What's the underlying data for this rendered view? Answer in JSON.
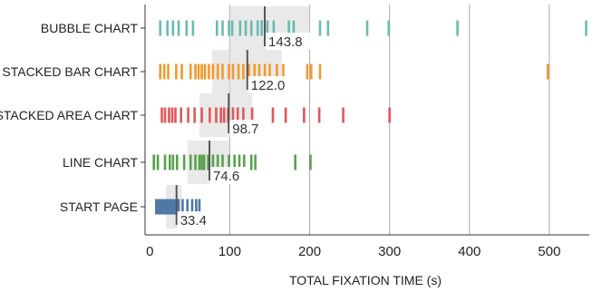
{
  "chart_data": {
    "type": "strip",
    "xlabel": "TOTAL FIXATION TIME (s)",
    "xlim": [
      -6,
      550
    ],
    "x_ticks": [
      0,
      100,
      200,
      300,
      400,
      500
    ],
    "x_tick_labels": [
      "0",
      "100",
      "200",
      "300",
      "400",
      "500"
    ],
    "grid": "vertical",
    "rows": [
      {
        "category": "BUBBLE CHART",
        "color": "#6bbab2",
        "mean": 143.8,
        "mean_label": "143.8",
        "ci": [
          100,
          200
        ],
        "values": [
          13,
          22,
          29,
          36,
          46,
          54,
          84,
          91,
          99,
          103,
          113,
          120,
          127,
          135,
          140,
          147,
          155,
          174,
          180,
          213,
          223,
          272,
          299,
          385,
          546
        ]
      },
      {
        "category": "STACKED BAR CHART",
        "color": "#f29a2e",
        "mean": 122.0,
        "mean_label": "122.0",
        "ci": [
          78,
          165
        ],
        "values": [
          13,
          18,
          23,
          33,
          40,
          51,
          57,
          61,
          65,
          69,
          74,
          79,
          85,
          91,
          99,
          104,
          111,
          117,
          124,
          131,
          137,
          144,
          150,
          159,
          167,
          197,
          202,
          213,
          498
        ]
      },
      {
        "category": "STACKED AREA CHART",
        "color": "#e15759",
        "mean": 98.7,
        "mean_label": "98.7",
        "ci": [
          62,
          128
        ],
        "values": [
          15,
          19,
          24,
          28,
          32,
          39,
          48,
          56,
          65,
          75,
          83,
          89,
          93,
          98,
          104,
          110,
          117,
          128,
          154,
          170,
          193,
          212,
          242,
          300
        ]
      },
      {
        "category": "LINE CHART",
        "color": "#59a14f",
        "mean": 74.6,
        "mean_label": "74.6",
        "ci": [
          47,
          100
        ],
        "values": [
          5,
          10,
          19,
          25,
          29,
          34,
          43,
          51,
          57,
          62,
          65,
          68,
          73,
          79,
          85,
          91,
          99,
          106,
          112,
          118,
          127,
          132,
          182,
          201
        ]
      },
      {
        "category": "START PAGE",
        "color": "#4e79a7",
        "mean": 33.4,
        "mean_label": "33.4",
        "ci": [
          20,
          40
        ],
        "values": [
          8,
          10,
          12,
          14,
          16,
          18,
          20,
          22,
          24,
          26,
          28,
          30,
          32,
          34,
          36,
          41,
          47,
          53,
          58,
          62
        ]
      }
    ]
  }
}
